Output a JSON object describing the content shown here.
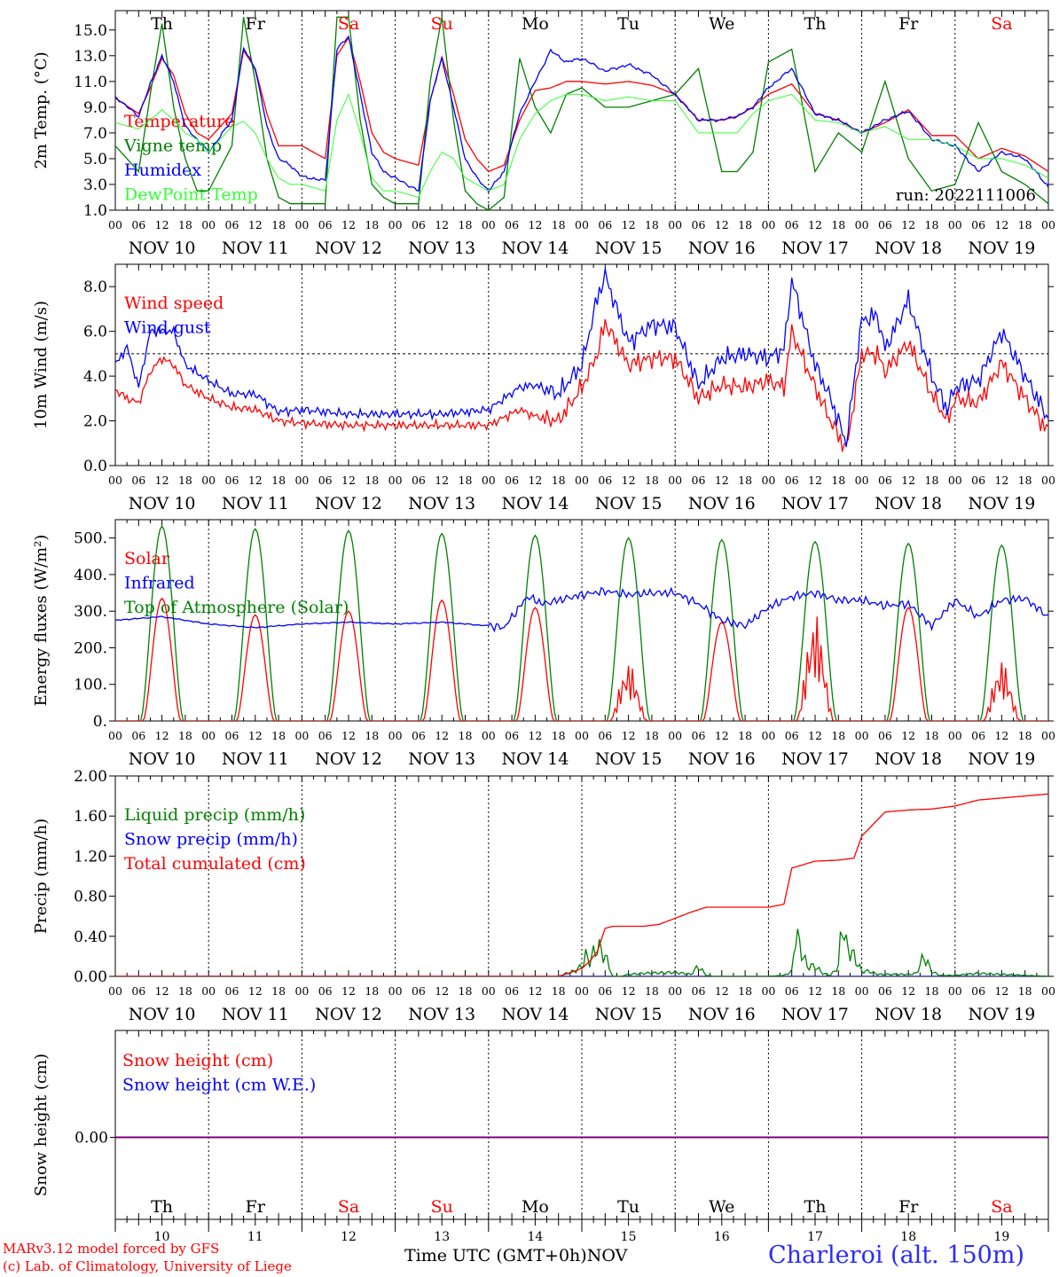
{
  "title": "Charleroi (alt. 150m)",
  "run": "run: 2022111006",
  "credits": [
    "MARv3.12 model forced by GFS",
    "(c) Lab. of Climatology, University of Liege"
  ],
  "time_axis_label": "Time UTC (GMT+0h)",
  "month_label": "NOV",
  "colors": {
    "red": "#ff0000",
    "green": "#008000",
    "blue": "#0000ff",
    "lightgreen": "#33ff33",
    "purple": "#7f007f"
  },
  "days": [
    {
      "name": "Th",
      "date": "NOV 10",
      "num": "10",
      "weekend": false
    },
    {
      "name": "Fr",
      "date": "NOV 11",
      "num": "11",
      "weekend": false
    },
    {
      "name": "Sa",
      "date": "NOV 12",
      "num": "12",
      "weekend": true
    },
    {
      "name": "Su",
      "date": "NOV 13",
      "num": "13",
      "weekend": true
    },
    {
      "name": "Mo",
      "date": "NOV 14",
      "num": "14",
      "weekend": false
    },
    {
      "name": "Tu",
      "date": "NOV 15",
      "num": "15",
      "weekend": false
    },
    {
      "name": "We",
      "date": "NOV 16",
      "num": "16",
      "weekend": false
    },
    {
      "name": "Th",
      "date": "NOV 17",
      "num": "17",
      "weekend": false
    },
    {
      "name": "Fr",
      "date": "NOV 18",
      "num": "18",
      "weekend": false
    },
    {
      "name": "Sa",
      "date": "NOV 19",
      "num": "19",
      "weekend": true
    }
  ],
  "hour_ticks": [
    "00",
    "06",
    "12",
    "18"
  ],
  "chart_data": [
    {
      "type": "line",
      "ylabel": "2m Temp. (°C)",
      "ylim": [
        1,
        16.5
      ],
      "yticks": [
        "1.0",
        "3.0",
        "5.0",
        "7.0",
        "9.0",
        "11.0",
        "13.0",
        "15.0"
      ],
      "x_unit": "hours since NOV 10 00 UTC",
      "series": [
        {
          "name": "Temperature",
          "color": "red",
          "x": [
            0,
            6,
            9,
            12,
            15,
            18,
            21,
            24,
            30,
            33,
            36,
            39,
            42,
            45,
            48,
            54,
            57,
            60,
            63,
            66,
            69,
            72,
            78,
            81,
            84,
            87,
            90,
            93,
            96,
            100,
            104,
            108,
            112,
            116,
            120,
            126,
            132,
            138,
            144,
            150,
            156,
            160,
            164,
            168,
            174,
            180,
            186,
            192,
            198,
            204,
            210,
            216,
            222,
            228,
            234,
            240
          ],
          "y": [
            9.7,
            8.5,
            10.5,
            12.8,
            11.5,
            8.5,
            7,
            6.5,
            8.5,
            13.4,
            12,
            8.5,
            6,
            6,
            6,
            5,
            13,
            14.4,
            11,
            7,
            5.5,
            5,
            4.5,
            9.5,
            12.9,
            10,
            6.5,
            5,
            4,
            4.5,
            8,
            10.3,
            10.5,
            11,
            11,
            10.8,
            11,
            10.7,
            10,
            8,
            8,
            8.3,
            9,
            10,
            10.8,
            8.5,
            8,
            7,
            7.8,
            8.8,
            6.8,
            6.8,
            5,
            5.8,
            5.2,
            4
          ]
        },
        {
          "name": "Vigne temp",
          "color": "green",
          "x": [
            0,
            6,
            9,
            12,
            15,
            18,
            21,
            24,
            30,
            33,
            36,
            39,
            42,
            45,
            48,
            54,
            57,
            60,
            63,
            66,
            69,
            72,
            78,
            81,
            84,
            87,
            90,
            93,
            96,
            100,
            104,
            108,
            112,
            116,
            120,
            126,
            132,
            138,
            144,
            150,
            156,
            160,
            164,
            168,
            174,
            180,
            186,
            192,
            198,
            204,
            210,
            216,
            222,
            228,
            234,
            240
          ],
          "y": [
            6,
            4,
            10,
            15.5,
            9,
            5,
            2.5,
            2.5,
            6,
            16,
            11,
            5,
            2,
            1.5,
            1.5,
            1.5,
            16,
            16,
            8,
            3,
            2,
            1.5,
            1.5,
            11,
            16,
            8,
            2.5,
            1.5,
            1,
            2,
            12.8,
            9,
            7,
            10,
            10.5,
            9,
            9,
            9.5,
            10,
            12,
            4,
            4,
            5.5,
            12.5,
            13.5,
            4,
            7,
            5.5,
            11,
            5,
            2.5,
            3,
            7.8,
            4,
            3,
            1.5
          ]
        },
        {
          "name": "Humidex",
          "color": "blue",
          "x": [
            0,
            6,
            9,
            12,
            15,
            18,
            21,
            24,
            30,
            33,
            36,
            39,
            42,
            45,
            48,
            54,
            57,
            60,
            63,
            66,
            69,
            72,
            78,
            81,
            84,
            87,
            90,
            93,
            96,
            100,
            104,
            108,
            112,
            116,
            120,
            126,
            132,
            138,
            144,
            150,
            156,
            160,
            164,
            168,
            174,
            180,
            186,
            192,
            198,
            204,
            210,
            216,
            222,
            228,
            234,
            240
          ],
          "y": [
            9.8,
            8.3,
            10.8,
            13,
            11,
            7.5,
            6.5,
            5.5,
            8,
            13.6,
            12,
            7.5,
            5,
            4.5,
            3.6,
            3.3,
            13.5,
            14.5,
            10,
            5.5,
            4,
            3.5,
            2.5,
            9.5,
            12.8,
            9,
            5,
            3.5,
            2.5,
            4,
            8.5,
            11,
            13.4,
            12.5,
            12.8,
            11.8,
            12.3,
            11.5,
            10,
            8,
            8,
            8.3,
            9,
            10.5,
            12,
            8.5,
            8,
            7,
            8,
            8.7,
            6.5,
            6,
            4,
            5.5,
            5,
            2.8
          ]
        },
        {
          "name": "DewPoint Temp",
          "color": "lightgreen",
          "x": [
            0,
            6,
            9,
            12,
            15,
            18,
            21,
            24,
            30,
            33,
            36,
            39,
            42,
            45,
            48,
            54,
            57,
            60,
            63,
            66,
            69,
            72,
            78,
            81,
            84,
            87,
            90,
            93,
            96,
            100,
            104,
            108,
            112,
            116,
            120,
            126,
            132,
            138,
            144,
            150,
            156,
            160,
            164,
            168,
            174,
            180,
            186,
            192,
            198,
            204,
            210,
            216,
            222,
            228,
            234,
            240
          ],
          "y": [
            7.8,
            7.3,
            8,
            8.8,
            8,
            7,
            6.5,
            5.5,
            7.5,
            7.9,
            7,
            5,
            3.5,
            3,
            3,
            2.5,
            8,
            10,
            7,
            3.5,
            2.5,
            2.5,
            2,
            4,
            5.5,
            5,
            3.5,
            3,
            2.5,
            3,
            6.5,
            8.5,
            9.5,
            10,
            10,
            9.5,
            9.8,
            9.5,
            9.5,
            7,
            7,
            7,
            8.5,
            9.5,
            10,
            8,
            7.8,
            7,
            7.5,
            6.5,
            6.5,
            6,
            5,
            5,
            4.5,
            3.5
          ]
        }
      ]
    },
    {
      "type": "line",
      "ylabel": "10m Wind (m/s)",
      "ylim": [
        0,
        9
      ],
      "yticks": [
        "0.0",
        "2.0",
        "4.0",
        "6.0",
        "8.0"
      ],
      "reference_line": 5,
      "x_unit": "hours since NOV 10 00 UTC",
      "series": [
        {
          "name": "Wind speed",
          "color": "red",
          "x": [
            0,
            3,
            6,
            9,
            12,
            15,
            18,
            24,
            30,
            36,
            42,
            48,
            60,
            72,
            84,
            96,
            104,
            108,
            114,
            120,
            124,
            126,
            132,
            138,
            144,
            150,
            156,
            162,
            168,
            172,
            174,
            180,
            184,
            188,
            192,
            196,
            198,
            204,
            210,
            214,
            216,
            222,
            228,
            234,
            240
          ],
          "y": [
            3.4,
            3,
            2.8,
            4.2,
            4.8,
            4.5,
            3.6,
            3,
            2.6,
            2.5,
            2,
            1.9,
            1.8,
            1.8,
            1.8,
            1.8,
            2.5,
            2.2,
            2,
            3.5,
            5,
            6.4,
            4.5,
            4.8,
            4.8,
            3,
            3.6,
            3.5,
            3.8,
            3.5,
            6,
            3.5,
            2,
            0.7,
            5,
            5,
            4.2,
            5.5,
            3.2,
            2,
            3,
            2.8,
            4.6,
            3,
            1.5
          ]
        },
        {
          "name": "Wind gust",
          "color": "blue",
          "x": [
            0,
            3,
            6,
            9,
            12,
            15,
            18,
            24,
            30,
            36,
            42,
            48,
            60,
            72,
            84,
            96,
            104,
            108,
            114,
            120,
            124,
            126,
            132,
            138,
            144,
            150,
            156,
            162,
            168,
            172,
            174,
            180,
            184,
            188,
            192,
            196,
            198,
            204,
            210,
            214,
            216,
            222,
            228,
            234,
            240
          ],
          "y": [
            4.5,
            5.3,
            3.5,
            6,
            6,
            6,
            4.5,
            3.8,
            3.2,
            3.2,
            2.4,
            2.5,
            2.3,
            2.3,
            2.3,
            2.5,
            3.5,
            3.6,
            3.2,
            4.5,
            7.5,
            8.5,
            5.5,
            6.3,
            6.2,
            3.6,
            4.8,
            5,
            4.8,
            5.2,
            8.3,
            4.5,
            3,
            1,
            6.5,
            6.7,
            5.2,
            7.4,
            4,
            2.5,
            3.5,
            3.8,
            6,
            4,
            2.1
          ]
        }
      ]
    },
    {
      "type": "line",
      "ylabel": "Energy fluxes (W/m²)",
      "ylim": [
        0,
        550
      ],
      "yticks": [
        "0.",
        "100.",
        "200.",
        "300.",
        "400.",
        "500."
      ],
      "x_unit": "hours since NOV 10 00 UTC",
      "daily_peaks": {
        "Solar": [
          335,
          290,
          300,
          330,
          310,
          145,
          270,
          265,
          310,
          150
        ],
        "Top of Atmosphere (Solar)": [
          532,
          525,
          520,
          512,
          507,
          500,
          495,
          490,
          485,
          480
        ]
      },
      "series": [
        {
          "name": "Solar",
          "color": "red"
        },
        {
          "name": "Infrared",
          "color": "blue",
          "x": [
            0,
            12,
            24,
            36,
            48,
            60,
            72,
            84,
            96,
            100,
            106,
            110,
            120,
            126,
            132,
            138,
            144,
            150,
            156,
            162,
            168,
            174,
            180,
            186,
            192,
            198,
            204,
            210,
            216,
            222,
            228,
            234,
            240
          ],
          "y": [
            275,
            285,
            265,
            255,
            265,
            270,
            265,
            270,
            260,
            255,
            340,
            320,
            345,
            355,
            345,
            350,
            350,
            320,
            275,
            260,
            310,
            340,
            350,
            330,
            330,
            315,
            320,
            260,
            330,
            285,
            330,
            335,
            285
          ]
        },
        {
          "name": "Top of Atmosphere (Solar)",
          "color": "green"
        }
      ]
    },
    {
      "type": "line",
      "ylabel": "Precip (mm/h)",
      "ylim": [
        0,
        2
      ],
      "yticks": [
        "0.00",
        "0.40",
        "0.80",
        "1.20",
        "1.60",
        "2.00"
      ],
      "x_unit": "hours since NOV 10 00 UTC",
      "series": [
        {
          "name": "Liquid precip (mm/h)",
          "color": "green",
          "x": [
            0,
            114,
            116,
            118,
            120,
            121,
            122,
            124,
            126,
            128,
            130,
            132,
            136,
            144,
            148,
            150,
            152,
            154,
            168,
            172,
            174,
            175,
            176,
            178,
            180,
            182,
            184,
            186,
            187,
            188,
            190,
            192,
            194,
            196,
            204,
            206,
            208,
            210,
            212,
            216,
            222,
            240
          ],
          "y": [
            0,
            0,
            0.03,
            0.05,
            0.1,
            0.2,
            0.15,
            0.3,
            0.2,
            0,
            0,
            0.02,
            0.03,
            0.04,
            0.02,
            0.1,
            0.01,
            0,
            0,
            0.01,
            0.05,
            0.45,
            0.3,
            0.1,
            0.1,
            0.03,
            0.01,
            0.1,
            0.58,
            0.3,
            0.2,
            0.05,
            0.05,
            0.02,
            0.02,
            0.03,
            0.2,
            0.05,
            0.01,
            0.01,
            0.03,
            0
          ]
        },
        {
          "name": "Snow precip (mm/h)",
          "color": "blue",
          "x": [
            0,
            240
          ],
          "y": [
            0,
            0
          ]
        },
        {
          "name": "Total cumulated (cm)",
          "color": "red",
          "x": [
            0,
            114,
            118,
            120,
            122,
            124,
            126,
            128,
            132,
            136,
            140,
            144,
            148,
            152,
            156,
            160,
            168,
            172,
            174,
            180,
            186,
            190,
            192,
            198,
            204,
            210,
            216,
            222,
            228,
            234,
            240
          ],
          "y": [
            0,
            0,
            0.05,
            0.08,
            0.15,
            0.25,
            0.48,
            0.5,
            0.5,
            0.5,
            0.52,
            0.58,
            0.64,
            0.69,
            0.69,
            0.69,
            0.69,
            0.72,
            1.08,
            1.15,
            1.16,
            1.18,
            1.4,
            1.64,
            1.66,
            1.67,
            1.7,
            1.76,
            1.78,
            1.8,
            1.82
          ]
        }
      ]
    },
    {
      "type": "line",
      "ylabel": "Snow height (cm)",
      "yticks": [
        "0.00"
      ],
      "x_unit": "hours since NOV 10 00 UTC",
      "series": [
        {
          "name": "Snow height (cm)",
          "color": "red",
          "x": [
            0,
            240
          ],
          "y": [
            0,
            0
          ]
        },
        {
          "name": "Snow height (cm W.E.)",
          "color": "blue",
          "x": [
            0,
            240
          ],
          "y": [
            0,
            0
          ]
        }
      ]
    }
  ]
}
